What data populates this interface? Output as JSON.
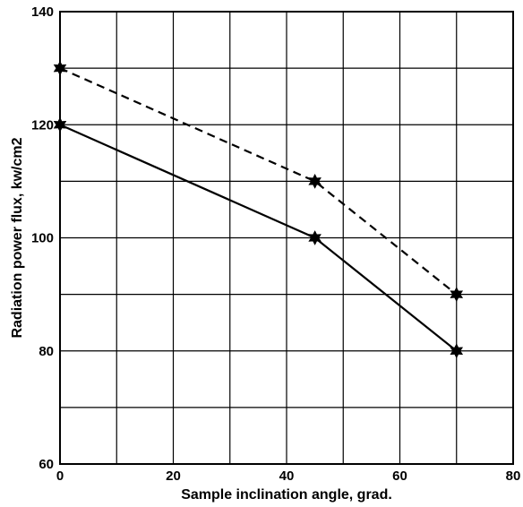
{
  "chart_data": {
    "type": "line",
    "title": "",
    "xlabel": "Sample inclination angle, grad.",
    "ylabel": "Radiation power flux, kw/cm2",
    "xlim": [
      0,
      80
    ],
    "ylim": [
      60,
      140
    ],
    "x_ticks": [
      "0",
      "20",
      "40",
      "60",
      "80"
    ],
    "y_ticks": [
      "60",
      "80",
      "100",
      "120",
      "140"
    ],
    "grid": true,
    "grid_x_step": 10,
    "grid_y_step": 10,
    "legend": "none",
    "marker": "star",
    "series": [
      {
        "line_style": "dashed",
        "color": "#000000",
        "x": [
          0,
          45,
          70
        ],
        "y": [
          130,
          110,
          90
        ]
      },
      {
        "line_style": "solid",
        "color": "#000000",
        "x": [
          0,
          45,
          70
        ],
        "y": [
          120,
          100,
          80
        ]
      }
    ]
  }
}
